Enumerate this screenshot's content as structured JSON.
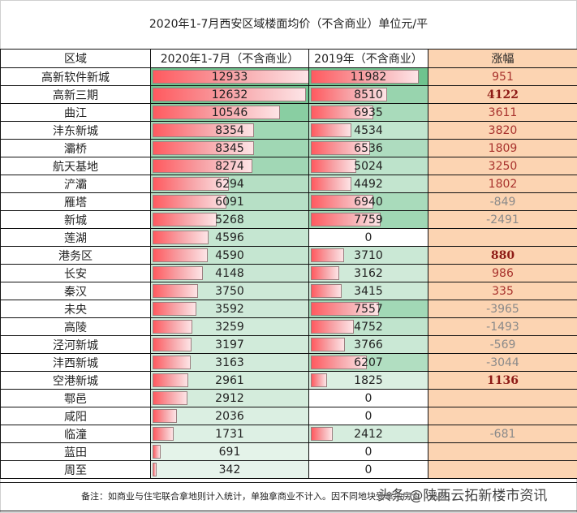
{
  "title": "2020年1-7月西安区域楼面均价（不含商业）单位元/平",
  "headers": [
    "区域",
    "2020年1-7月（不含商业）",
    "2019年（不含商业）",
    "涨幅"
  ],
  "colors": {
    "bar_start": "#ff5a5f",
    "bar_end": "#fde4e6",
    "change_bg": "#fcd4b2",
    "positive_text": "#a8322d",
    "negative_text": "#8a8a8a",
    "green_bg_dark": "#6fc38e",
    "green_bg_light": "#e8f4ec"
  },
  "rows": [
    {
      "region": "高新软件新城",
      "y2020": "12933",
      "y2019": "11982",
      "change": "951",
      "style": "pos"
    },
    {
      "region": "高新三期",
      "y2020": "12632",
      "y2019": "8510",
      "change": "4122",
      "style": "bold"
    },
    {
      "region": "曲江",
      "y2020": "10546",
      "y2019": "6935",
      "change": "3611",
      "style": "pos"
    },
    {
      "region": "沣东新城",
      "y2020": "8354",
      "y2019": "4534",
      "change": "3820",
      "style": "pos"
    },
    {
      "region": "灞桥",
      "y2020": "8345",
      "y2019": "6536",
      "change": "1809",
      "style": "pos"
    },
    {
      "region": "航天基地",
      "y2020": "8274",
      "y2019": "5024",
      "change": "3250",
      "style": "pos"
    },
    {
      "region": "浐灞",
      "y2020": "6294",
      "y2019": "4492",
      "change": "1802",
      "style": "pos"
    },
    {
      "region": "雁塔",
      "y2020": "6091",
      "y2019": "6940",
      "change": "-849",
      "style": "neg"
    },
    {
      "region": "新城",
      "y2020": "5268",
      "y2019": "7759",
      "change": "-2491",
      "style": "neg"
    },
    {
      "region": "莲湖",
      "y2020": "4596",
      "y2019": "0",
      "change": "",
      "style": "pos"
    },
    {
      "region": "港务区",
      "y2020": "4590",
      "y2019": "3710",
      "change": "880",
      "style": "bold"
    },
    {
      "region": "长安",
      "y2020": "4148",
      "y2019": "3162",
      "change": "986",
      "style": "pos"
    },
    {
      "region": "秦汉",
      "y2020": "3750",
      "y2019": "3415",
      "change": "335",
      "style": "pos"
    },
    {
      "region": "未央",
      "y2020": "3592",
      "y2019": "7557",
      "change": "-3965",
      "style": "neg"
    },
    {
      "region": "高陵",
      "y2020": "3259",
      "y2019": "4752",
      "change": "-1493",
      "style": "neg"
    },
    {
      "region": "泾河新城",
      "y2020": "3197",
      "y2019": "3766",
      "change": "-569",
      "style": "neg"
    },
    {
      "region": "沣西新城",
      "y2020": "3163",
      "y2019": "6207",
      "change": "-3044",
      "style": "neg"
    },
    {
      "region": "空港新城",
      "y2020": "2961",
      "y2019": "1825",
      "change": "1136",
      "style": "bold"
    },
    {
      "region": "鄠邑",
      "y2020": "2912",
      "y2019": "0",
      "change": "",
      "style": "pos"
    },
    {
      "region": "咸阳",
      "y2020": "2036",
      "y2019": "0",
      "change": "",
      "style": "pos"
    },
    {
      "region": "临潼",
      "y2020": "1731",
      "y2019": "2412",
      "change": "-681",
      "style": "neg"
    },
    {
      "region": "蓝田",
      "y2020": "691",
      "y2019": "0",
      "change": "",
      "style": "pos"
    },
    {
      "region": "周至",
      "y2020": "342",
      "y2019": "0",
      "change": "",
      "style": "pos"
    }
  ],
  "note": "备注：如商业与住宅联合拿地则计入统计，单独拿商业不计入。因不同地块受拿地房企（品牌、",
  "watermark": "头条 @陕西云拓新楼市资讯"
}
